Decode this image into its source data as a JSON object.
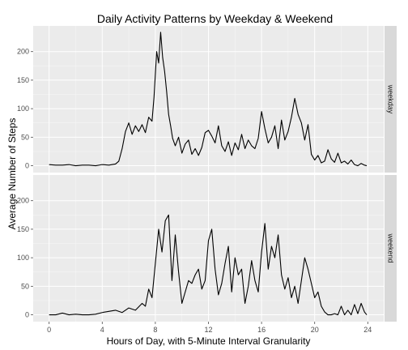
{
  "chart_data": {
    "type": "line",
    "title": "Daily Activity Patterns by Weekday & Weekend",
    "xlabel": "Hours of Day, with 5-Minute Interval Granularity",
    "ylabel": "Average Number of Steps",
    "xlim": [
      -1.2,
      25.2
    ],
    "ylim": [
      -12,
      245
    ],
    "x_ticks": [
      0,
      4,
      8,
      12,
      16,
      20,
      24
    ],
    "y_ticks": [
      0,
      50,
      100,
      150,
      200
    ],
    "grid": true,
    "panel_background": "#ebebeb",
    "strip_background": "#d9d9d9",
    "line_color": "#000000",
    "panels": [
      {
        "name": "weekday",
        "x": [
          0,
          0.5,
          1,
          1.5,
          2,
          2.5,
          3,
          3.5,
          4,
          4.5,
          5,
          5.25,
          5.5,
          5.75,
          6,
          6.25,
          6.5,
          6.75,
          7,
          7.25,
          7.5,
          7.75,
          7.9,
          8.1,
          8.25,
          8.4,
          8.55,
          8.7,
          8.85,
          9,
          9.15,
          9.3,
          9.5,
          9.75,
          10,
          10.25,
          10.5,
          10.75,
          11,
          11.25,
          11.5,
          11.75,
          12,
          12.25,
          12.5,
          12.75,
          13,
          13.25,
          13.5,
          13.75,
          14,
          14.25,
          14.5,
          14.75,
          15,
          15.25,
          15.5,
          15.75,
          16,
          16.25,
          16.5,
          16.75,
          17,
          17.25,
          17.5,
          17.75,
          18,
          18.25,
          18.5,
          18.75,
          19,
          19.25,
          19.5,
          19.75,
          20,
          20.25,
          20.5,
          20.75,
          21,
          21.25,
          21.5,
          21.75,
          22,
          22.25,
          22.5,
          22.75,
          23,
          23.25,
          23.5,
          23.75,
          23.92
        ],
        "values": [
          2,
          1,
          1,
          2,
          0,
          1,
          1,
          0,
          2,
          1,
          3,
          8,
          30,
          60,
          75,
          55,
          70,
          60,
          72,
          58,
          85,
          78,
          120,
          200,
          180,
          234,
          190,
          165,
          130,
          90,
          70,
          48,
          35,
          50,
          22,
          38,
          45,
          20,
          30,
          18,
          32,
          58,
          62,
          52,
          40,
          70,
          35,
          25,
          42,
          18,
          40,
          28,
          55,
          30,
          45,
          35,
          30,
          48,
          95,
          65,
          40,
          50,
          70,
          30,
          80,
          45,
          60,
          85,
          118,
          90,
          75,
          45,
          72,
          20,
          10,
          18,
          5,
          8,
          28,
          12,
          6,
          22,
          5,
          8,
          3,
          10,
          2,
          0,
          4,
          1,
          0
        ]
      },
      {
        "name": "weekend",
        "x": [
          0,
          0.5,
          1,
          1.5,
          2,
          2.5,
          3,
          3.5,
          4,
          4.5,
          5,
          5.5,
          6,
          6.5,
          7,
          7.25,
          7.5,
          7.75,
          8,
          8.25,
          8.5,
          8.75,
          9,
          9.25,
          9.5,
          9.75,
          10,
          10.25,
          10.5,
          10.75,
          11,
          11.25,
          11.5,
          11.75,
          12,
          12.25,
          12.5,
          12.75,
          13,
          13.25,
          13.5,
          13.75,
          14,
          14.25,
          14.5,
          14.75,
          15,
          15.25,
          15.5,
          15.75,
          16,
          16.25,
          16.5,
          16.75,
          17,
          17.25,
          17.5,
          17.75,
          18,
          18.25,
          18.5,
          18.75,
          19,
          19.25,
          19.5,
          19.75,
          20,
          20.25,
          20.5,
          20.75,
          21,
          21.25,
          21.5,
          21.75,
          22,
          22.25,
          22.5,
          22.75,
          23,
          23.25,
          23.5,
          23.75,
          23.92
        ],
        "values": [
          0,
          0,
          3,
          0,
          1,
          0,
          0,
          1,
          4,
          6,
          8,
          4,
          12,
          8,
          20,
          15,
          45,
          30,
          90,
          150,
          110,
          165,
          175,
          60,
          140,
          75,
          20,
          40,
          60,
          55,
          70,
          80,
          45,
          60,
          130,
          150,
          80,
          35,
          55,
          90,
          120,
          40,
          100,
          70,
          80,
          20,
          50,
          95,
          60,
          40,
          110,
          160,
          80,
          120,
          100,
          140,
          70,
          45,
          65,
          30,
          50,
          20,
          60,
          100,
          80,
          55,
          30,
          40,
          15,
          5,
          0,
          0,
          2,
          0,
          15,
          0,
          8,
          0,
          18,
          2,
          20,
          5,
          0
        ]
      }
    ]
  }
}
